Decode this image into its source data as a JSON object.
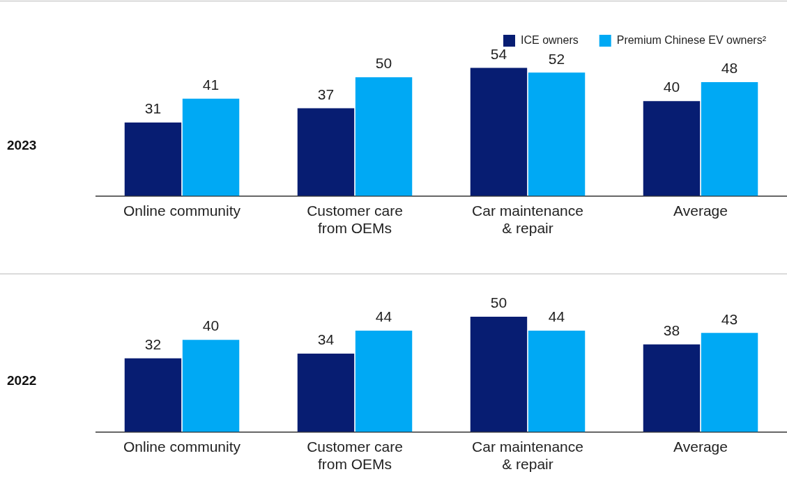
{
  "chart_data": [
    {
      "type": "bar",
      "ylabel": "2023",
      "categories": [
        "Online community",
        "Customer care from OEMs",
        "Car maintenance & repair",
        "Average"
      ],
      "data_labels": true,
      "grid": false,
      "legend": "top right",
      "series": [
        {
          "name": "ICE owners",
          "color": "#071d72",
          "values": [
            31,
            37,
            54,
            40
          ]
        },
        {
          "name": "Premium Chinese EV owners²",
          "color": "#00a9f4",
          "values": [
            41,
            50,
            52,
            48
          ]
        }
      ]
    },
    {
      "type": "bar",
      "ylabel": "2022",
      "categories": [
        "Online community",
        "Customer care from OEMs",
        "Car maintenance & repair",
        "Average"
      ],
      "data_labels": true,
      "grid": false,
      "legend": false,
      "series": [
        {
          "color": "#071d72",
          "values": [
            32,
            34,
            50,
            38
          ]
        },
        {
          "color": "#00a9f4",
          "values": [
            40,
            44,
            44,
            43
          ]
        }
      ]
    }
  ]
}
